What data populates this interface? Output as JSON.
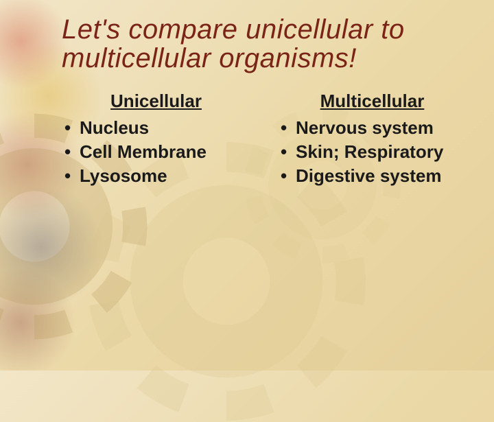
{
  "slide": {
    "title_line1": "Let's compare unicellular to",
    "title_line2": "multicellular organisms!",
    "title_color": "#7a2418",
    "title_fontsize": 40,
    "body_fontsize": 26,
    "body_color": "#1a1a1a",
    "columns": {
      "left": {
        "heading": "Unicellular",
        "items": [
          "Nucleus",
          "Cell Membrane",
          "Lysosome"
        ]
      },
      "right": {
        "heading": "Multicellular",
        "items": [
          "Nervous system",
          "Skin; Respiratory",
          "Digestive system"
        ]
      }
    },
    "background": {
      "gradient_from": "#f2e6c8",
      "gradient_to": "#e5d09a"
    }
  }
}
